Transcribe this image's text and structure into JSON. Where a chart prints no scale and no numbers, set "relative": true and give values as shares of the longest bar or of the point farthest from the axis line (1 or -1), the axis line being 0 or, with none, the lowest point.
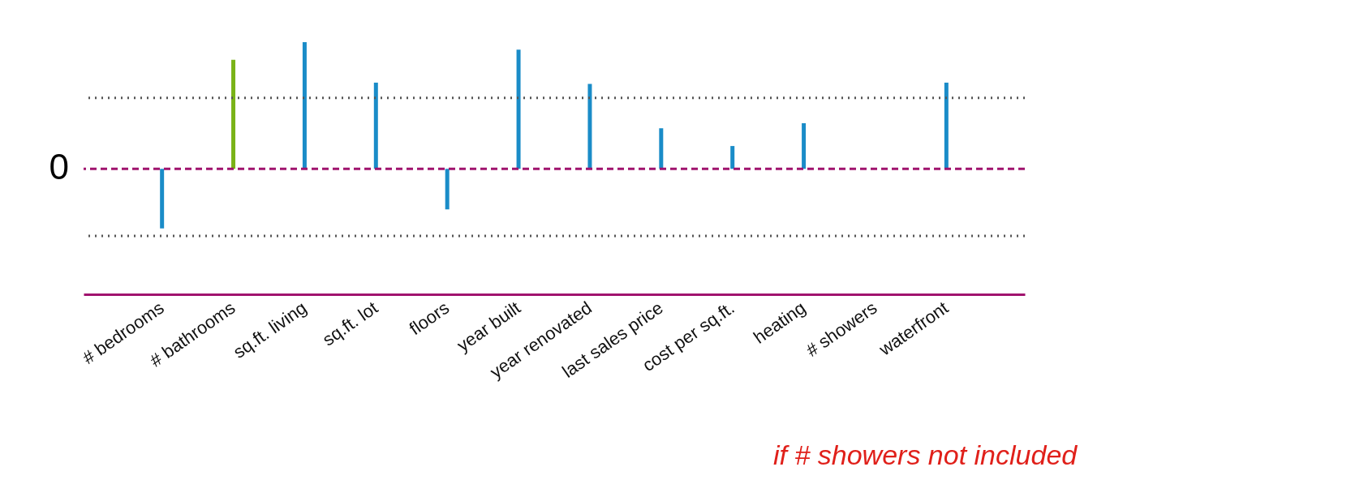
{
  "chart_data": {
    "type": "bar",
    "relative": true,
    "categories": [
      "# bedrooms",
      "# bathrooms",
      "sq.ft. living",
      "sq.ft. lot",
      "floors",
      "year built",
      "year renovated",
      "last sales price",
      "cost per sq.ft.",
      "heating",
      "# showers",
      "waterfront"
    ],
    "values": [
      -0.47,
      0.86,
      1,
      0.68,
      -0.32,
      0.94,
      0.67,
      0.32,
      0.18,
      0.36,
      null,
      0.68
    ],
    "colors": [
      "#1a8cc8",
      "#7ab317",
      "#1a8cc8",
      "#1a8cc8",
      "#1a8cc8",
      "#1a8cc8",
      "#1a8cc8",
      "#1a8cc8",
      "#1a8cc8",
      "#1a8cc8",
      "#1a8cc8",
      "#1a8cc8"
    ],
    "ref_lines": [
      {
        "axis": "y",
        "value": 0,
        "label": "0",
        "color": "#a0136e",
        "line_style": "dashed"
      },
      {
        "axis": "y",
        "value": 0.56,
        "color": "#555555",
        "line_style": "dotted"
      },
      {
        "axis": "y",
        "value": -0.53,
        "color": "#555555",
        "line_style": "dotted"
      }
    ],
    "annotations": [
      "if # showers not included"
    ],
    "grid": false
  }
}
